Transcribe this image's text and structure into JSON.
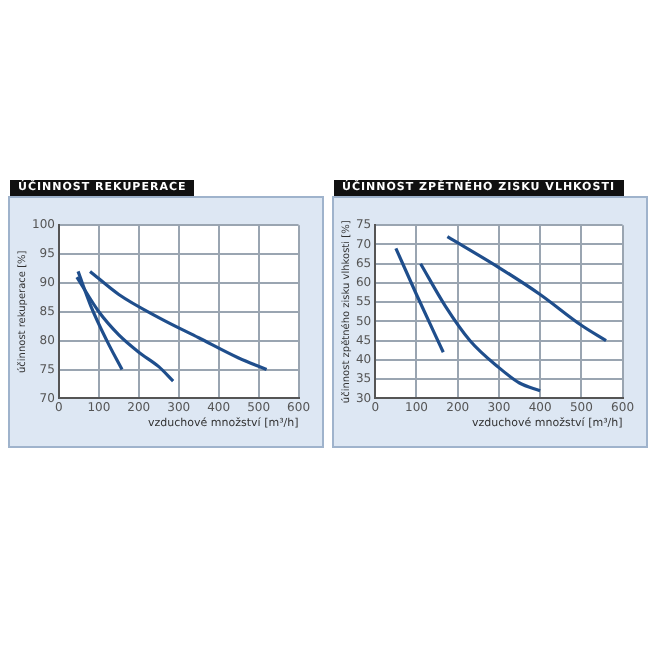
{
  "chart_data": [
    {
      "type": "line",
      "title": "ÚČINNOST REKUPERACE",
      "xlabel": "vzduchové množství [m³/h]",
      "ylabel": "účinnost rekuperace [%]",
      "xlim": [
        0,
        600
      ],
      "xticks": [
        0,
        100,
        200,
        300,
        400,
        500,
        600
      ],
      "ylim": [
        70,
        100
      ],
      "yticks": [
        70,
        75,
        80,
        85,
        90,
        95,
        100
      ],
      "grid": true,
      "legend": false,
      "marker": "none",
      "line_style": "solid",
      "series": [
        {
          "color": "#1f4e8c",
          "x": [
            48,
            80,
            120,
            158
          ],
          "values": [
            92,
            86,
            80,
            75
          ]
        },
        {
          "color": "#1f4e8c",
          "x": [
            45,
            100,
            150,
            200,
            250,
            286
          ],
          "values": [
            91,
            85,
            81,
            78,
            75.5,
            73
          ]
        },
        {
          "color": "#1f4e8c",
          "x": [
            78,
            150,
            250,
            350,
            450,
            520
          ],
          "values": [
            92,
            88,
            84,
            80.5,
            77,
            75
          ]
        }
      ]
    },
    {
      "type": "line",
      "title": "ÚČINNOST ZPĚTNÉHO ZISKU VLHKOSTI",
      "xlabel": "vzduchové množství [m³/h]",
      "ylabel": "účinnost zpětného zisku vlhkosti [%]",
      "xlim": [
        0,
        600
      ],
      "xticks": [
        0,
        100,
        200,
        300,
        400,
        500,
        600
      ],
      "ylim": [
        30,
        75
      ],
      "yticks": [
        30,
        35,
        40,
        45,
        50,
        55,
        60,
        65,
        70,
        75
      ],
      "grid": true,
      "legend": false,
      "marker": "none",
      "line_style": "solid",
      "series": [
        {
          "color": "#1f4e8c",
          "x": [
            50,
            100,
            165
          ],
          "values": [
            69,
            57,
            42
          ]
        },
        {
          "color": "#1f4e8c",
          "x": [
            110,
            170,
            230,
            300,
            350,
            400
          ],
          "values": [
            65,
            54,
            45,
            38,
            34,
            32
          ]
        },
        {
          "color": "#1f4e8c",
          "x": [
            175,
            300,
            400,
            500,
            560
          ],
          "values": [
            72,
            64,
            57,
            49,
            45
          ]
        }
      ]
    }
  ]
}
